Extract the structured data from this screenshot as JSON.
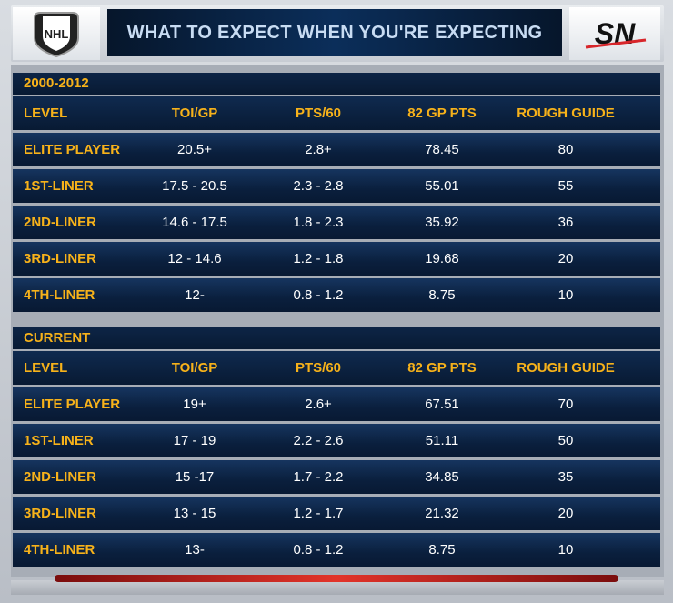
{
  "header": {
    "title": "WHAT TO EXPECT WHEN YOU'RE EXPECTING",
    "left_logo": "nhl-shield-logo",
    "right_logo_text": "SN"
  },
  "columns": [
    "LEVEL",
    "TOI/GP",
    "PTS/60",
    "82 GP PTS",
    "ROUGH GUIDE"
  ],
  "sections": [
    {
      "title": "2000-2012",
      "rows": [
        {
          "level": "ELITE PLAYER",
          "toi": "20.5+",
          "pts60": "2.8+",
          "gp82": "78.45",
          "guide": "80"
        },
        {
          "level": "1ST-LINER",
          "toi": "17.5 - 20.5",
          "pts60": "2.3 - 2.8",
          "gp82": "55.01",
          "guide": "55"
        },
        {
          "level": "2ND-LINER",
          "toi": "14.6 - 17.5",
          "pts60": "1.8 - 2.3",
          "gp82": "35.92",
          "guide": "36"
        },
        {
          "level": "3RD-LINER",
          "toi": "12 - 14.6",
          "pts60": "1.2 - 1.8",
          "gp82": "19.68",
          "guide": "20"
        },
        {
          "level": "4TH-LINER",
          "toi": "12-",
          "pts60": "0.8 - 1.2",
          "gp82": "8.75",
          "guide": "10"
        }
      ]
    },
    {
      "title": "CURRENT",
      "rows": [
        {
          "level": "ELITE PLAYER",
          "toi": "19+",
          "pts60": "2.6+",
          "gp82": "67.51",
          "guide": "70"
        },
        {
          "level": "1ST-LINER",
          "toi": "17 - 19",
          "pts60": "2.2 - 2.6",
          "gp82": "51.11",
          "guide": "50"
        },
        {
          "level": "2ND-LINER",
          "toi": "15 -17",
          "pts60": "1.7 - 2.2",
          "gp82": "34.85",
          "guide": "35"
        },
        {
          "level": "3RD-LINER",
          "toi": "13 - 15",
          "pts60": "1.2 - 1.7",
          "gp82": "21.32",
          "guide": "20"
        },
        {
          "level": "4TH-LINER",
          "toi": "13-",
          "pts60": "0.8 - 1.2",
          "gp82": "8.75",
          "guide": "10"
        }
      ]
    }
  ],
  "colors": {
    "accent": "#f7b21a",
    "row_bg": "#0a1f3d",
    "text": "#ffffff"
  }
}
